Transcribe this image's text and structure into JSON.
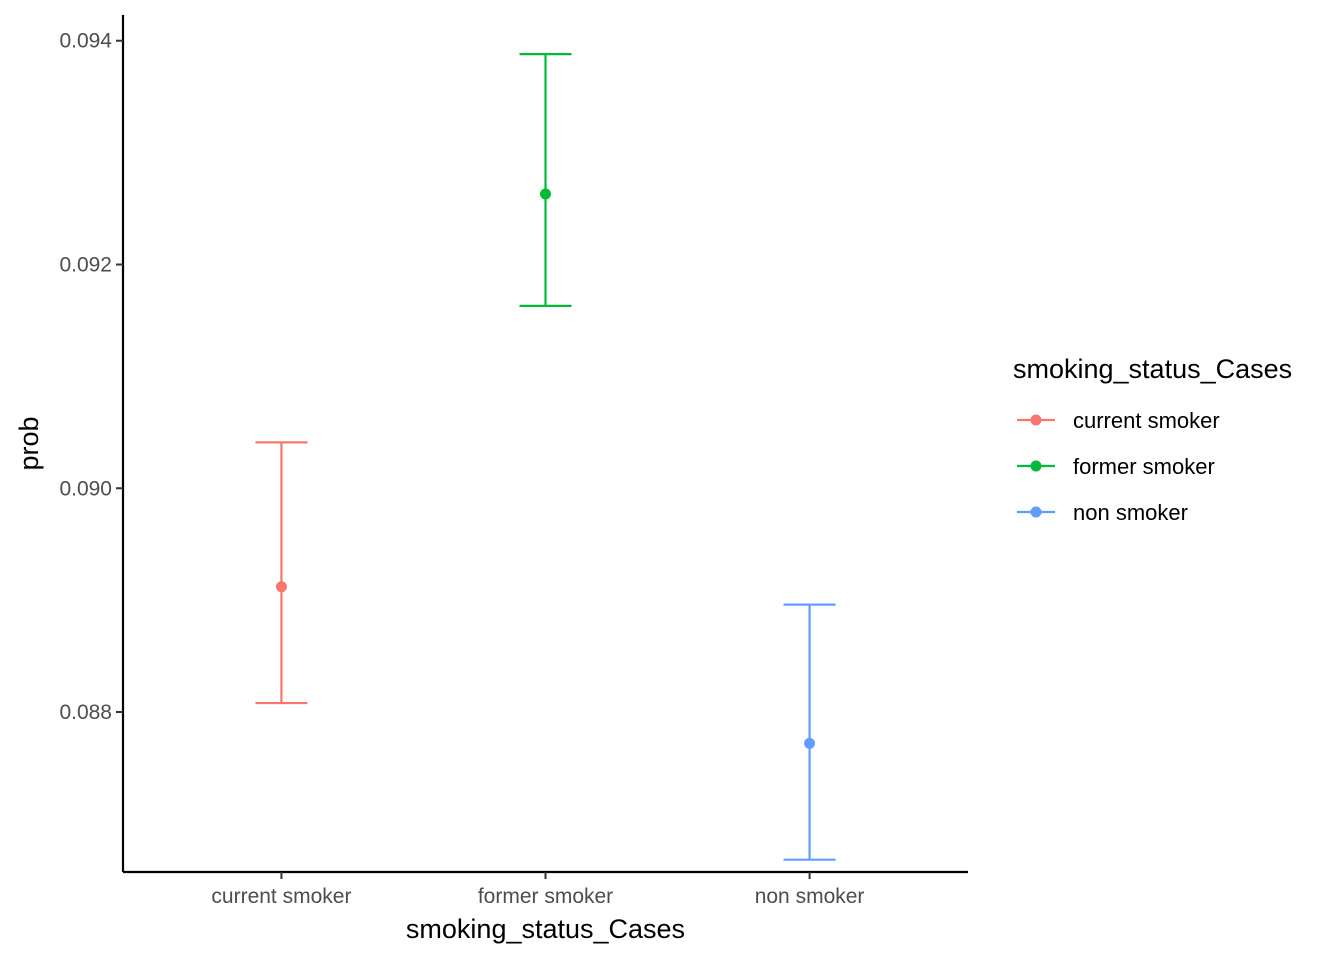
{
  "chart_data": {
    "type": "scatter",
    "title": "",
    "xlabel": "smoking_status_Cases",
    "ylabel": "prob",
    "categories": [
      "current smoker",
      "former smoker",
      "non smoker"
    ],
    "series": [
      {
        "name": "current smoker",
        "category": "current smoker",
        "y": 0.08912,
        "ymin": 0.08808,
        "ymax": 0.09041,
        "color": "#F8766D"
      },
      {
        "name": "former smoker",
        "category": "former smoker",
        "y": 0.09263,
        "ymin": 0.09163,
        "ymax": 0.09388,
        "color": "#00BA38"
      },
      {
        "name": "non smoker",
        "category": "non smoker",
        "y": 0.08772,
        "ymin": 0.08668,
        "ymax": 0.08896,
        "color": "#619CFF"
      }
    ],
    "yticks": [
      0.088,
      0.09,
      0.092,
      0.094
    ],
    "ytick_labels": [
      "0.088",
      "0.090",
      "0.092",
      "0.094"
    ],
    "ylim": [
      0.08657,
      0.09423
    ],
    "grid": false,
    "legend": {
      "title": "smoking_status_Cases",
      "placement": "right",
      "entries": [
        "current smoker",
        "former smoker",
        "non smoker"
      ]
    }
  }
}
